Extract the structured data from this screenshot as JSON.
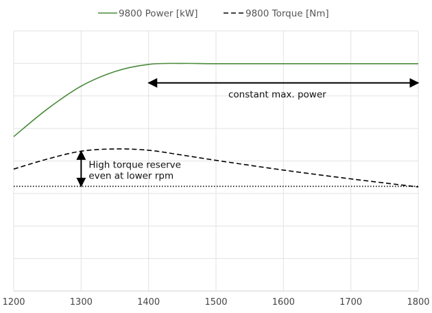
{
  "chart_data": {
    "type": "line",
    "xlim": [
      1200,
      1800
    ],
    "ylim": [
      0,
      8
    ],
    "x_ticks": [
      1200,
      1300,
      1400,
      1500,
      1600,
      1700,
      1800
    ],
    "y_gridlines": [
      1,
      2,
      3,
      4,
      5,
      6,
      7,
      8
    ],
    "y_tick_labels_shown": false,
    "grid": true,
    "legend": {
      "placement": "top",
      "entries": [
        {
          "name": "9800 Power [kW]",
          "style": "solid",
          "color": "#4a8a3a"
        },
        {
          "name": "9800 Torque [Nm]",
          "style": "dashed",
          "color": "#000000"
        }
      ]
    },
    "series": [
      {
        "name": "9800 Power [kW]",
        "color": "#4a8a3a",
        "style": "solid",
        "x": [
          1200,
          1250,
          1300,
          1350,
          1400,
          1450,
          1500,
          1600,
          1700,
          1800
        ],
        "y": [
          4.75,
          5.6,
          6.3,
          6.75,
          6.97,
          7.0,
          6.99,
          6.99,
          6.99,
          6.99
        ]
      },
      {
        "name": "9800 Torque [Nm]",
        "color": "#000000",
        "style": "dashed",
        "x": [
          1200,
          1250,
          1300,
          1350,
          1400,
          1450,
          1500,
          1600,
          1700,
          1800
        ],
        "y": [
          3.75,
          4.06,
          4.3,
          4.37,
          4.33,
          4.18,
          4.02,
          3.72,
          3.45,
          3.2
        ]
      }
    ],
    "reference_line": {
      "y": 3.22,
      "style": "dotted",
      "color": "#000000"
    },
    "annotations": [
      {
        "text": "constant max. power",
        "arrow": {
          "type": "double-horizontal",
          "x_from": 1400,
          "x_to": 1800,
          "y": 6.4
        }
      },
      {
        "text_lines": [
          "High torque reserve",
          "even at lower rpm"
        ],
        "arrow": {
          "type": "double-vertical",
          "x": 1300,
          "y_from": 3.22,
          "y_to": 4.3
        }
      }
    ]
  }
}
